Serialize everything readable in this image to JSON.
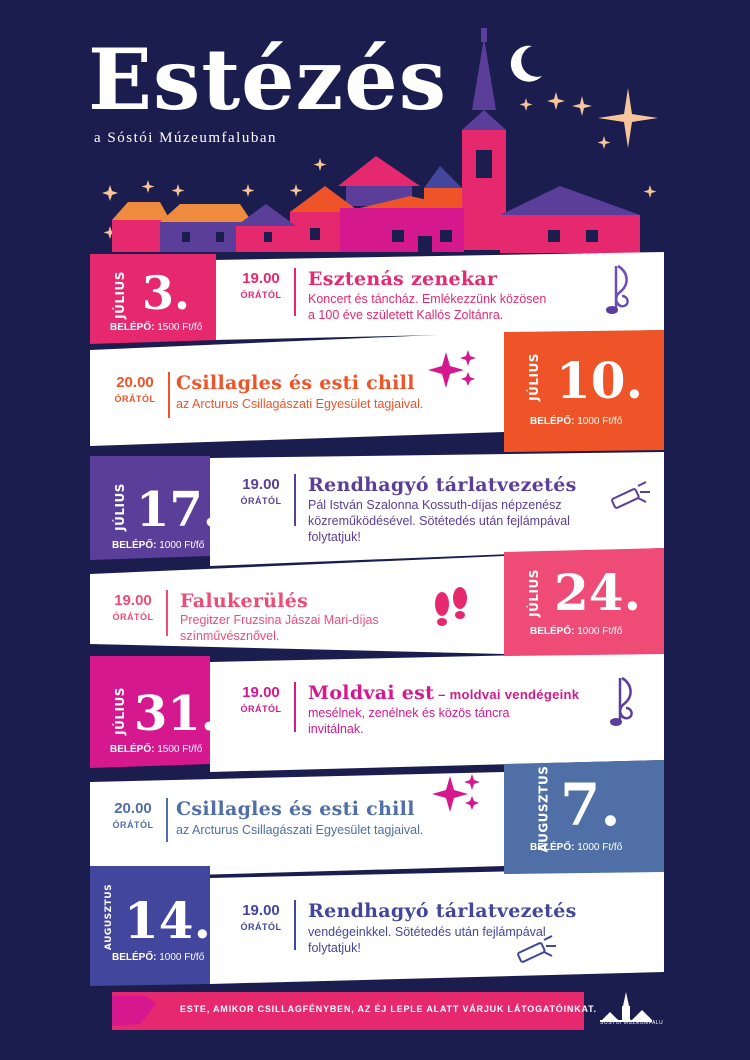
{
  "header": {
    "title": "Estézés",
    "subtitle": "a Sóstói Múzeumfaluban"
  },
  "colors": {
    "background": "#1b1d4e",
    "pink": "#e6286f",
    "orange": "#ef5328",
    "purple": "#5b3e99",
    "magenta": "#d5188e",
    "steel": "#4f6fa6",
    "navy_purple": "#43469d",
    "coral": "#ee4c77"
  },
  "events": [
    {
      "month": "JÚLIUS",
      "day": "3.",
      "fee_label": "BELÉPŐ:",
      "fee_value": "1500 Ft/fő",
      "time": "19.00",
      "time_suffix": "ÓRÁTÓL",
      "title": "Esztenás zenekar",
      "desc": "Koncert és táncház. Emlékezzünk közösen a 100 éve született Kallós Zoltánra.",
      "icon": "music-note-icon"
    },
    {
      "month": "JÚLIUS",
      "day": "10.",
      "fee_label": "BELÉPŐ:",
      "fee_value": "1000 Ft/fő",
      "time": "20.00",
      "time_suffix": "ÓRÁTÓL",
      "title": "Csillagles és esti chill",
      "desc": "az Arcturus Csillagászati Egyesület tagjaival.",
      "icon": "sparkles-icon"
    },
    {
      "month": "JÚLIUS",
      "day": "17.",
      "fee_label": "BELÉPŐ:",
      "fee_value": "1000 Ft/fő",
      "time": "19.00",
      "time_suffix": "ÓRÁTÓL",
      "title": "Rendhagyó tárlatvezetés",
      "desc": "Pál István Szalonna Kossuth-díjas népzenész közreműködésével. Sötétedés után fejlámpával folytatjuk!",
      "icon": "flashlight-icon"
    },
    {
      "month": "JÚLIUS",
      "day": "24.",
      "fee_label": "BELÉPŐ:",
      "fee_value": "1000 Ft/fő",
      "time": "19.00",
      "time_suffix": "ÓRÁTÓL",
      "title": "Falukerülés",
      "desc": "Pregitzer Fruzsina Jászai Mari-díjas színművésznővel.",
      "icon": "footprints-icon"
    },
    {
      "month": "JÚLIUS",
      "day": "31.",
      "fee_label": "BELÉPŐ:",
      "fee_value": "1500 Ft/fő",
      "time": "19.00",
      "time_suffix": "ÓRÁTÓL",
      "title": "Moldvai est",
      "title_tail": " – moldvai vendégeink",
      "desc": "mesélnek, zenélnek és közös táncra invitálnak.",
      "icon": "music-note-icon"
    },
    {
      "month": "AUGUSZTUS",
      "day": "7.",
      "fee_label": "BELÉPŐ:",
      "fee_value": "1000 Ft/fő",
      "time": "20.00",
      "time_suffix": "ÓRÁTÓL",
      "title": "Csillagles és esti chill",
      "desc": "az Arcturus Csillagászati Egyesület tagjaival.",
      "icon": "sparkles-icon"
    },
    {
      "month": "AUGUSZTUS",
      "day": "14.",
      "fee_label": "BELÉPŐ:",
      "fee_value": "1000 Ft/fő",
      "time": "19.00",
      "time_suffix": "ÓRÁTÓL",
      "title": "Rendhagyó tárlatvezetés",
      "desc": "vendégeinkkel. Sötétedés után fejlámpával folytatjuk!",
      "icon": "flashlight-icon"
    }
  ],
  "footer": {
    "text": "ESTE, AMIKOR CSILLAGFÉNYBEN, AZ ÉJ LEPLE ALATT VÁRJUK LÁTOGATÓINKAT.",
    "logo_text": "SÓSTÓI MÚZEUMFALU"
  }
}
